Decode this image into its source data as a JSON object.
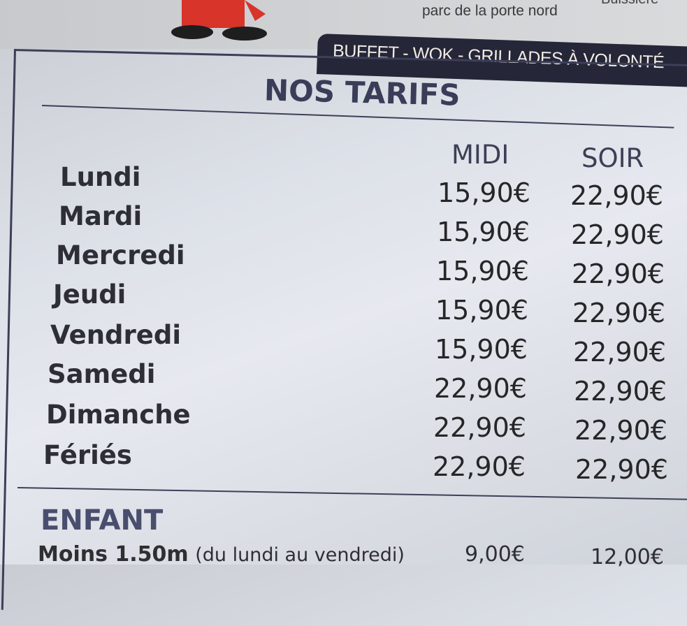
{
  "header": {
    "address_line1": "Buissière",
    "address_line2": "parc de la porte nord",
    "banner": "BUFFET - WOK - GRILLADES À VOLONTÉ"
  },
  "tarifs": {
    "title": "NOS TARIFS",
    "columns": [
      "MIDI",
      "SOIR"
    ],
    "rows": [
      {
        "day": "Lundi",
        "midi": "15,90€",
        "soir": "22,90€"
      },
      {
        "day": "Mardi",
        "midi": "15,90€",
        "soir": "22,90€"
      },
      {
        "day": "Mercredi",
        "midi": "15,90€",
        "soir": "22,90€"
      },
      {
        "day": "Jeudi",
        "midi": "15,90€",
        "soir": "22,90€"
      },
      {
        "day": "Vendredi",
        "midi": "15,90€",
        "soir": "22,90€"
      },
      {
        "day": "Samedi",
        "midi": "22,90€",
        "soir": "22,90€"
      },
      {
        "day": "Dimanche",
        "midi": "22,90€",
        "soir": "22,90€"
      },
      {
        "day": "Fériés",
        "midi": "22,90€",
        "soir": "22,90€"
      }
    ]
  },
  "enfant": {
    "title": "ENFANT",
    "row": {
      "label": "Moins 1.50m",
      "note": "(du lundi au vendredi)",
      "midi": "9,00€",
      "soir": "12,00€"
    }
  },
  "colors": {
    "navy": "#252637",
    "title": "#3a3d58",
    "enfant": "#4a4e6e",
    "mascot_red": "#d8342a"
  }
}
